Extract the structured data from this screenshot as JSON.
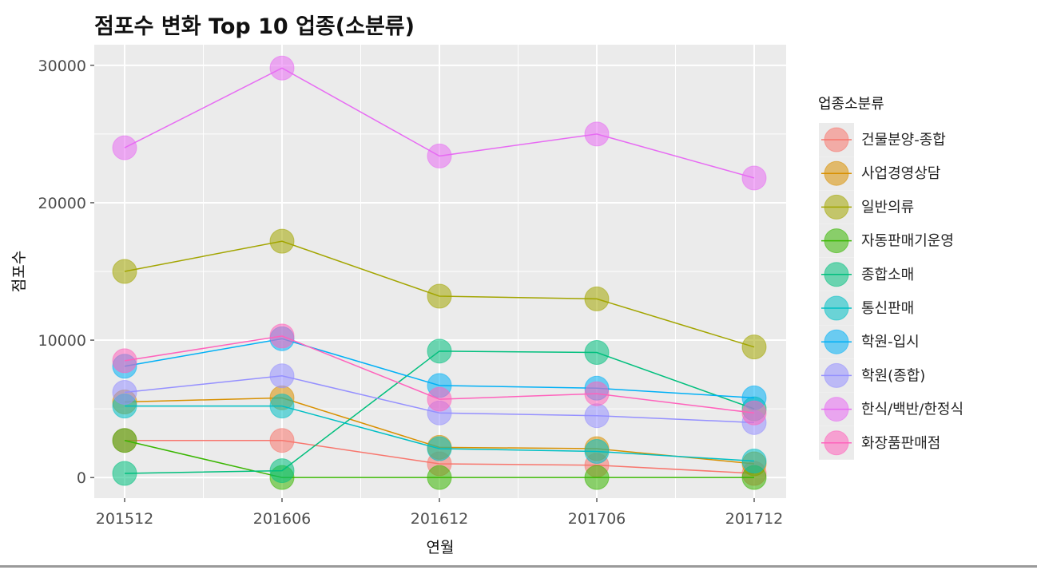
{
  "chart_data": {
    "type": "line",
    "title": "점포수 변화 Top 10 업종(소분류)",
    "xlabel": "연월",
    "ylabel": "점포수",
    "categories": [
      "201512",
      "201606",
      "201612",
      "201706",
      "201712"
    ],
    "ylim": [
      -1500,
      31500
    ],
    "yticks": [
      0,
      10000,
      20000,
      30000
    ],
    "grid": true,
    "legend_title": "업종소분류",
    "legend_position": "right",
    "series": [
      {
        "name": "건물분양-종합",
        "color": "#F8766D",
        "values": [
          2700,
          2700,
          1000,
          900,
          300
        ]
      },
      {
        "name": "사업경영상담",
        "color": "#D89000",
        "values": [
          5500,
          5800,
          2200,
          2100,
          1000
        ]
      },
      {
        "name": "일반의류",
        "color": "#A3A500",
        "values": [
          15000,
          17200,
          13200,
          13000,
          9500
        ]
      },
      {
        "name": "자동판매기운영",
        "color": "#39B600",
        "values": [
          2700,
          0,
          0,
          0,
          0
        ]
      },
      {
        "name": "종합소매",
        "color": "#00BF7D",
        "values": [
          300,
          500,
          9200,
          9100,
          5000
        ]
      },
      {
        "name": "통신판매",
        "color": "#00BFC4",
        "values": [
          5200,
          5200,
          2100,
          1900,
          1200
        ]
      },
      {
        "name": "학원-입시",
        "color": "#00B0F6",
        "values": [
          8100,
          10100,
          6700,
          6500,
          5800
        ]
      },
      {
        "name": "학원(종합)",
        "color": "#9590FF",
        "values": [
          6200,
          7400,
          4700,
          4500,
          4000
        ]
      },
      {
        "name": "한식/백반/한정식",
        "color": "#E76BF3",
        "values": [
          24000,
          29800,
          23400,
          25000,
          21800
        ]
      },
      {
        "name": "화장품판매점",
        "color": "#FF62BC",
        "values": [
          8500,
          10300,
          5700,
          6100,
          4700
        ]
      }
    ]
  }
}
